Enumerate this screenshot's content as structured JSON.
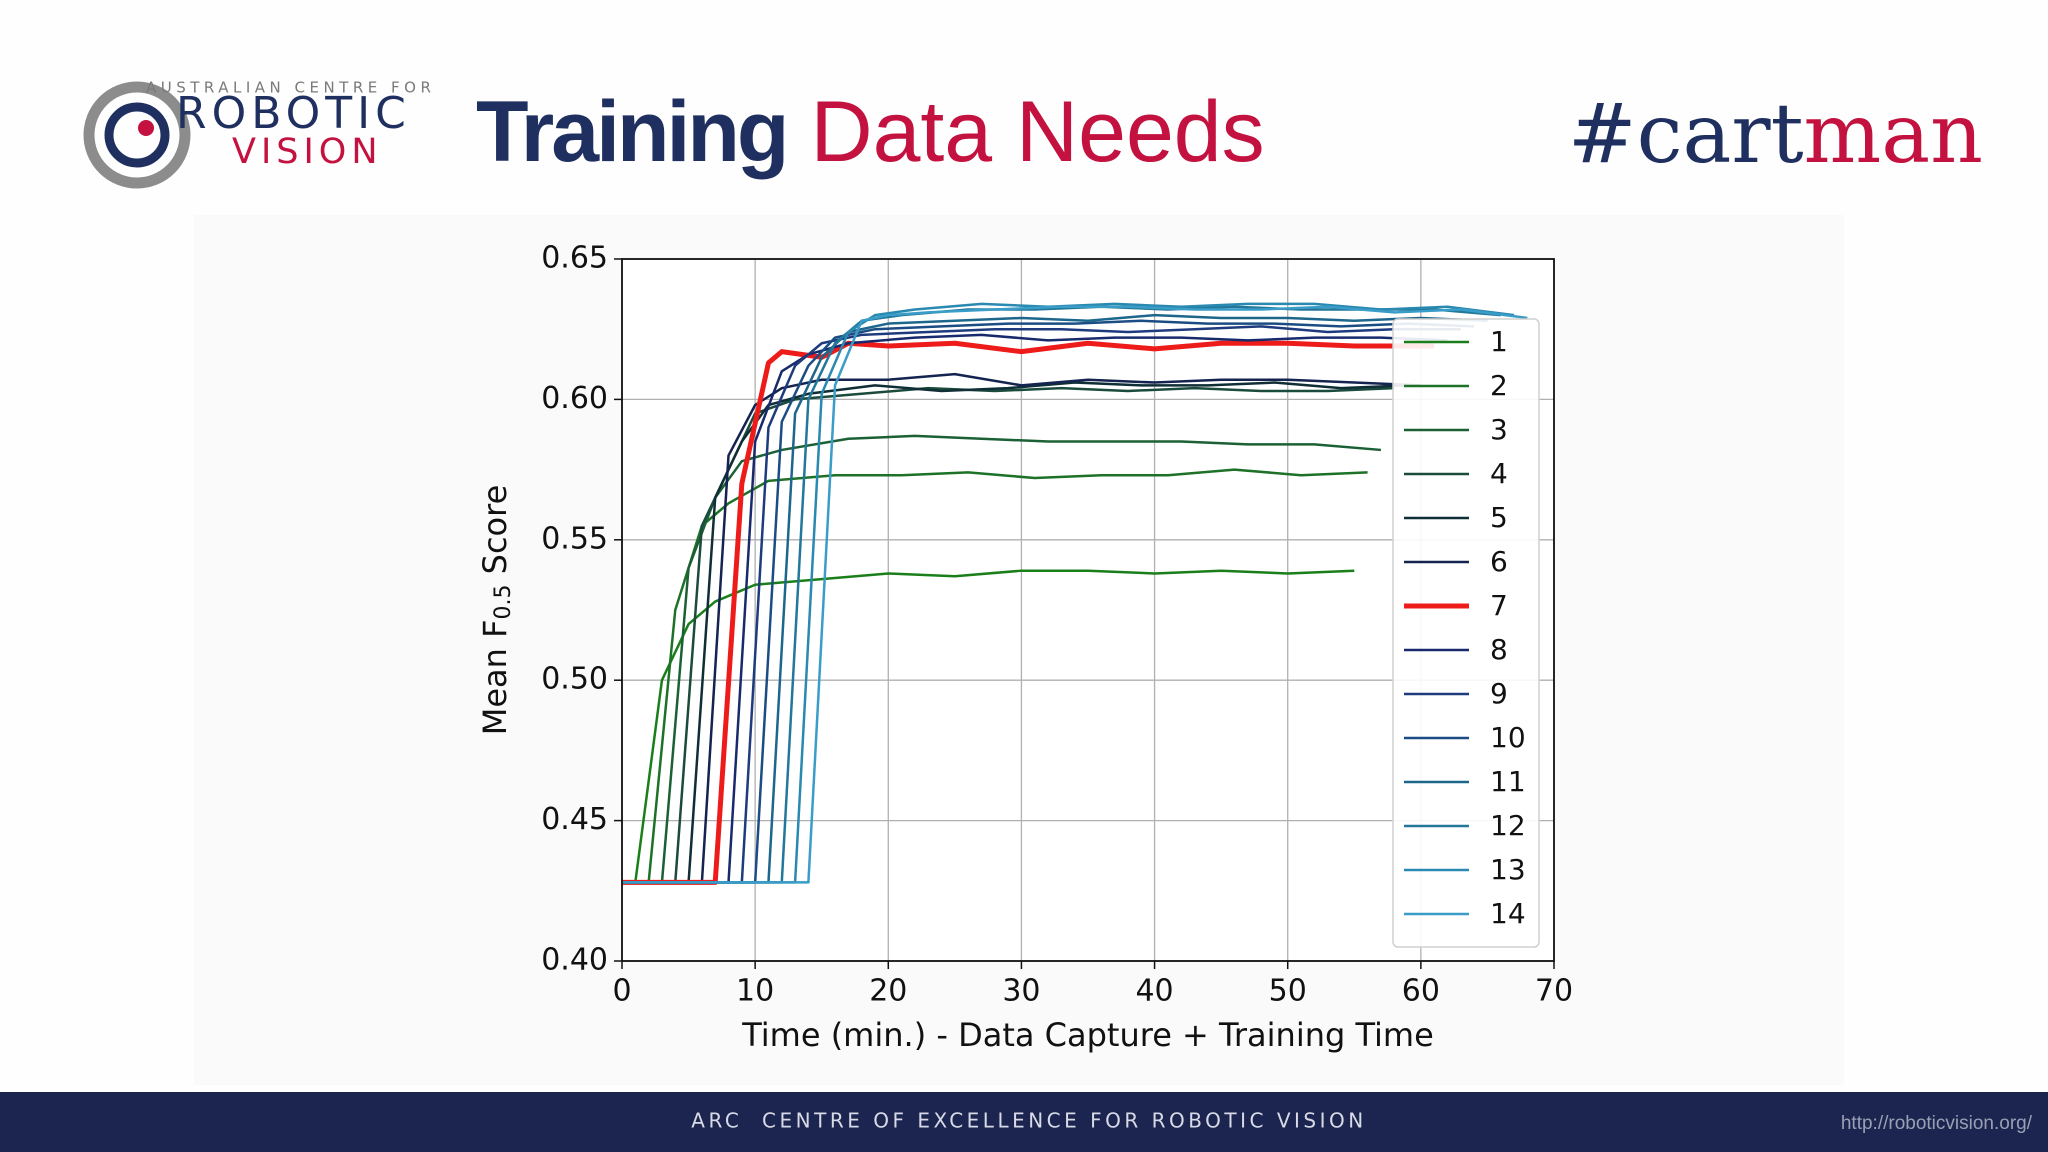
{
  "header": {
    "logo": {
      "top": "AUSTRALIAN CENTRE FOR",
      "line1": "ROBOTIC",
      "line2": "VISION"
    },
    "title": [
      "Training",
      "Data Needs"
    ],
    "hashtag": [
      "#cart",
      "man"
    ]
  },
  "chart_data": {
    "type": "line",
    "xlabel": "Time (min.) - Data Capture + Training Time",
    "ylabel": [
      "Mean F",
      "0.5",
      " Score"
    ],
    "xlim": [
      0,
      70
    ],
    "xticks": [
      0,
      10,
      20,
      30,
      40,
      50,
      60,
      70
    ],
    "ylim": [
      0.4,
      0.65
    ],
    "yticks": [
      {
        "value": 0.4,
        "label": "0.40"
      },
      0.45,
      {
        "value": 0.5,
        "label": "0.50"
      },
      0.55,
      {
        "value": 0.6,
        "label": "0.60"
      },
      0.65
    ],
    "grid": true,
    "legend": "right",
    "series": [
      {
        "name": "1",
        "color": "#1a7f1a",
        "linewidth": 2.5,
        "x": [
          0,
          1,
          3,
          5,
          7,
          10,
          15,
          20,
          25,
          30,
          35,
          40,
          45,
          50,
          55
        ],
        "values": [
          0.428,
          0.428,
          0.5,
          0.52,
          0.528,
          0.534,
          0.536,
          0.538,
          0.537,
          0.539,
          0.539,
          0.538,
          0.539,
          0.538,
          0.539
        ]
      },
      {
        "name": "2",
        "color": "#1d7227",
        "linewidth": 2.5,
        "x": [
          0,
          2,
          4,
          6,
          8,
          11,
          16,
          21,
          26,
          31,
          36,
          41,
          46,
          51,
          56
        ],
        "values": [
          0.428,
          0.428,
          0.525,
          0.555,
          0.563,
          0.571,
          0.573,
          0.573,
          0.574,
          0.572,
          0.573,
          0.573,
          0.575,
          0.573,
          0.574
        ]
      },
      {
        "name": "3",
        "color": "#1c6035",
        "linewidth": 2.5,
        "x": [
          0,
          3,
          5,
          7,
          9,
          12,
          17,
          22,
          27,
          32,
          37,
          42,
          47,
          52,
          57
        ],
        "values": [
          0.428,
          0.428,
          0.54,
          0.565,
          0.578,
          0.582,
          0.586,
          0.587,
          0.586,
          0.585,
          0.585,
          0.585,
          0.584,
          0.584,
          0.582
        ]
      },
      {
        "name": "4",
        "color": "#1b4b3c",
        "linewidth": 2.5,
        "x": [
          0,
          4,
          6,
          8,
          10,
          13,
          18,
          23,
          28,
          33,
          38,
          43,
          48,
          53,
          58
        ],
        "values": [
          0.428,
          0.428,
          0.555,
          0.575,
          0.595,
          0.6,
          0.602,
          0.604,
          0.603,
          0.604,
          0.603,
          0.604,
          0.603,
          0.603,
          0.604
        ]
      },
      {
        "name": "5",
        "color": "#0f2e36",
        "linewidth": 2.5,
        "x": [
          0,
          5,
          7,
          9,
          11,
          14,
          19,
          24,
          29,
          34,
          39,
          44,
          49,
          54,
          59
        ],
        "values": [
          0.428,
          0.428,
          0.565,
          0.585,
          0.598,
          0.602,
          0.605,
          0.603,
          0.604,
          0.606,
          0.605,
          0.605,
          0.606,
          0.604,
          0.605
        ]
      },
      {
        "name": "6",
        "color": "#14234f",
        "linewidth": 2.5,
        "x": [
          0,
          6,
          8,
          10,
          12,
          15,
          20,
          25,
          30,
          35,
          40,
          45,
          50,
          55,
          60
        ],
        "values": [
          0.428,
          0.428,
          0.58,
          0.598,
          0.604,
          0.607,
          0.607,
          0.609,
          0.605,
          0.607,
          0.606,
          0.607,
          0.607,
          0.606,
          0.605
        ]
      },
      {
        "name": "7",
        "color": "#ee1b1b",
        "linewidth": 5,
        "x": [
          0,
          7,
          9,
          11,
          12,
          15,
          17,
          20,
          25,
          30,
          35,
          40,
          45,
          50,
          55,
          61
        ],
        "values": [
          0.428,
          0.428,
          0.57,
          0.613,
          0.617,
          0.615,
          0.62,
          0.619,
          0.62,
          0.617,
          0.62,
          0.618,
          0.62,
          0.62,
          0.619,
          0.619
        ]
      },
      {
        "name": "8",
        "color": "#182a6c",
        "linewidth": 2.5,
        "x": [
          0,
          8,
          10,
          12,
          14,
          17,
          22,
          27,
          32,
          37,
          42,
          47,
          52,
          57,
          62
        ],
        "values": [
          0.428,
          0.428,
          0.585,
          0.61,
          0.616,
          0.62,
          0.622,
          0.623,
          0.621,
          0.622,
          0.622,
          0.621,
          0.622,
          0.622,
          0.621
        ]
      },
      {
        "name": "9",
        "color": "#1e3b7e",
        "linewidth": 2.5,
        "x": [
          0,
          9,
          11,
          13,
          15,
          18,
          23,
          28,
          33,
          38,
          43,
          48,
          53,
          58,
          63
        ],
        "values": [
          0.428,
          0.428,
          0.59,
          0.612,
          0.62,
          0.623,
          0.624,
          0.625,
          0.625,
          0.624,
          0.625,
          0.626,
          0.624,
          0.625,
          0.625
        ]
      },
      {
        "name": "10",
        "color": "#1b4d84",
        "linewidth": 2.5,
        "x": [
          0,
          10,
          12,
          14,
          16,
          19,
          24,
          29,
          34,
          39,
          44,
          49,
          54,
          59,
          64
        ],
        "values": [
          0.428,
          0.428,
          0.592,
          0.612,
          0.622,
          0.625,
          0.626,
          0.627,
          0.627,
          0.628,
          0.627,
          0.627,
          0.626,
          0.627,
          0.626
        ]
      },
      {
        "name": "11",
        "color": "#1d668c",
        "linewidth": 2.5,
        "x": [
          0,
          11,
          13,
          15,
          17,
          20,
          25,
          30,
          35,
          40,
          45,
          50,
          55,
          60,
          65
        ],
        "values": [
          0.428,
          0.428,
          0.595,
          0.615,
          0.624,
          0.627,
          0.628,
          0.629,
          0.628,
          0.63,
          0.629,
          0.629,
          0.628,
          0.629,
          0.628
        ]
      },
      {
        "name": "12",
        "color": "#22779a",
        "linewidth": 2.5,
        "x": [
          0,
          12,
          14,
          16,
          18,
          21,
          26,
          31,
          36,
          41,
          46,
          51,
          56,
          61,
          66
        ],
        "values": [
          0.428,
          0.428,
          0.6,
          0.62,
          0.628,
          0.63,
          0.632,
          0.632,
          0.633,
          0.632,
          0.633,
          0.632,
          0.632,
          0.632,
          0.63
        ]
      },
      {
        "name": "13",
        "color": "#2a89b0",
        "linewidth": 2.5,
        "x": [
          0,
          13,
          15,
          17,
          19,
          22,
          27,
          32,
          37,
          42,
          47,
          52,
          57,
          62,
          67
        ],
        "values": [
          0.428,
          0.428,
          0.602,
          0.624,
          0.63,
          0.632,
          0.634,
          0.633,
          0.634,
          0.633,
          0.634,
          0.634,
          0.632,
          0.633,
          0.63
        ]
      },
      {
        "name": "14",
        "color": "#3a9dc8",
        "linewidth": 2.5,
        "x": [
          0,
          14,
          16,
          18,
          20,
          23,
          28,
          33,
          38,
          43,
          48,
          53,
          58,
          63,
          68
        ],
        "values": [
          0.428,
          0.428,
          0.605,
          0.628,
          0.63,
          0.631,
          0.632,
          0.633,
          0.633,
          0.632,
          0.632,
          0.633,
          0.631,
          0.632,
          0.629
        ]
      }
    ]
  },
  "footer": {
    "text": "ARC  CENTRE OF EXCELLENCE FOR ROBOTIC VISION",
    "url": "http://roboticvision.org/"
  }
}
